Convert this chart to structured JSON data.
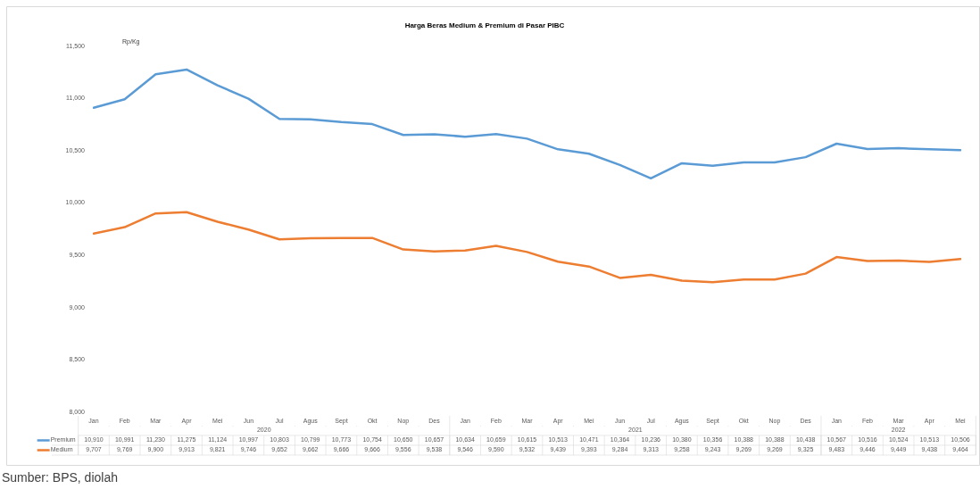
{
  "chart_data": {
    "type": "line",
    "title": "Harga Beras Medium & Premium di Pasar PIBC",
    "ylabel": "Rp/Kg",
    "categories": [
      "Jan",
      "Feb",
      "Mar",
      "Apr",
      "Mei",
      "Jun",
      "Jul",
      "Agus",
      "Sept",
      "Okt",
      "Nop",
      "Des",
      "Jan",
      "Feb",
      "Mar",
      "Apr",
      "Mei",
      "Jun",
      "Jul",
      "Agus",
      "Sept",
      "Okt",
      "Nop",
      "Des",
      "Jan",
      "Feb",
      "Mar",
      "Apr",
      "Mei"
    ],
    "series": [
      {
        "name": "Premium",
        "color": "#5b9bd5",
        "values": [
          10910,
          10991,
          11230,
          11275,
          11124,
          10997,
          10803,
          10799,
          10773,
          10754,
          10650,
          10657,
          10634,
          10659,
          10615,
          10513,
          10471,
          10364,
          10236,
          10380,
          10356,
          10388,
          10388,
          10438,
          10567,
          10516,
          10524,
          10513,
          10506
        ],
        "value_labels": [
          "10,910",
          "10,991",
          "11,230",
          "11,275",
          "11,124",
          "10,997",
          "10,803",
          "10,799",
          "10,773",
          "10,754",
          "10,650",
          "10,657",
          "10,634",
          "10,659",
          "10,615",
          "10,513",
          "10,471",
          "10,364",
          "10,236",
          "10,380",
          "10,356",
          "10,388",
          "10,388",
          "10,438",
          "10,567",
          "10,516",
          "10,524",
          "10,513",
          "10,506"
        ]
      },
      {
        "name": "Medium",
        "color": "#ed7d31",
        "values": [
          9707,
          9769,
          9900,
          9913,
          9821,
          9746,
          9652,
          9662,
          9666,
          9666,
          9556,
          9538,
          9546,
          9590,
          9532,
          9439,
          9393,
          9284,
          9313,
          9258,
          9243,
          9269,
          9269,
          9325,
          9483,
          9446,
          9449,
          9438,
          9464
        ],
        "value_labels": [
          "9,707",
          "9,769",
          "9,900",
          "9,913",
          "9,821",
          "9,746",
          "9,652",
          "9,662",
          "9,666",
          "9,666",
          "9,556",
          "9,538",
          "9,546",
          "9,590",
          "9,532",
          "9,439",
          "9,393",
          "9,284",
          "9,313",
          "9,258",
          "9,243",
          "9,269",
          "9,269",
          "9,325",
          "9,483",
          "9,446",
          "9,449",
          "9,438",
          "9,464"
        ]
      }
    ],
    "ylim": [
      8000,
      11500
    ],
    "yticks": [
      {
        "value": 8000,
        "label": "8,000"
      },
      {
        "value": 8500,
        "label": "8,500"
      },
      {
        "value": 9000,
        "label": "9,000"
      },
      {
        "value": 9500,
        "label": "9,500"
      },
      {
        "value": 10000,
        "label": "10,000"
      },
      {
        "value": 10500,
        "label": "10,500"
      },
      {
        "value": 11000,
        "label": "11,000"
      },
      {
        "value": 11500,
        "label": "11,500"
      }
    ],
    "grid": false,
    "legend": "bottom",
    "marker": "none",
    "line_style": "solid",
    "annotations": [
      "2020",
      "2021",
      "2022",
      "Sumber: BPS, diolah"
    ]
  }
}
